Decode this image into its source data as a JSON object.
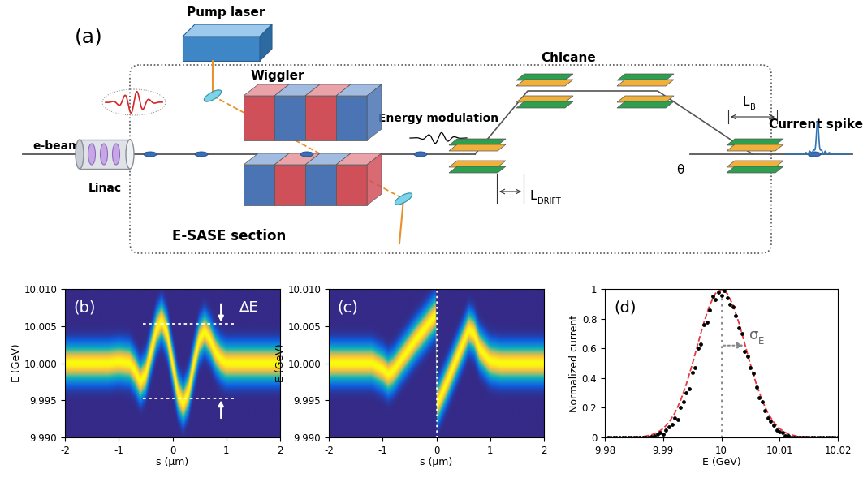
{
  "diagram": {
    "label": "(a)",
    "pump_laser": "Pump laser",
    "e_beam": "e-beam",
    "linac": "Linac",
    "wiggler": "Wiggler",
    "energy_modulation": "Energy modulation",
    "chicane": "Chicane",
    "current_spike": "Current spike",
    "section": "E-SASE section",
    "drift_length": {
      "symbol": "L",
      "subscript": "DRIFT"
    },
    "bend_length": {
      "symbol": "L",
      "subscript": "B"
    },
    "bend_angle": "θ"
  },
  "chart_data": [
    {
      "type": "density",
      "label": "(b)",
      "xlabel": "s (μm)",
      "ylabel": "E (GeV)",
      "xlim": [
        -2,
        2
      ],
      "xticks": [
        -2,
        -1,
        0,
        1,
        2
      ],
      "ylim": [
        9.99,
        10.01
      ],
      "yticks": [
        {
          "value": 9.99,
          "label": "9.990"
        },
        {
          "value": 9.995,
          "label": "9.995"
        },
        {
          "value": 10.0,
          "label": "10.000"
        },
        {
          "value": 10.005,
          "label": "10.005"
        },
        {
          "value": 10.01,
          "label": "10.010"
        }
      ],
      "x": [
        -2,
        -1.2,
        -1.0,
        -0.9,
        -0.8,
        -0.7,
        -0.6,
        -0.5,
        -0.4,
        -0.3,
        -0.2,
        -0.1,
        0,
        0.1,
        0.2,
        0.3,
        0.4,
        0.5,
        0.6,
        0.7,
        0.8,
        0.9,
        1.0,
        1.2,
        2
      ],
      "values": [
        10.0,
        10.0,
        10.0002,
        10.0001,
        10.0,
        9.999,
        9.9975,
        9.9985,
        10.0015,
        10.0045,
        10.0058,
        10.004,
        10.0,
        9.996,
        9.9945,
        9.9962,
        10.0,
        10.0032,
        10.0043,
        10.0032,
        10.0015,
        10.0005,
        10.0,
        10.0,
        10.0
      ],
      "energy_spread": 0.0012,
      "modulation": {
        "text": "ΔE",
        "upper": 10.0053,
        "lower": 9.9953
      }
    },
    {
      "type": "density",
      "label": "(c)",
      "xlabel": "s (μm)",
      "ylabel": "E (GeV)",
      "xlim": [
        -2,
        2
      ],
      "xticks": [
        -2,
        -1,
        0,
        1,
        2
      ],
      "ylim": [
        9.99,
        10.01
      ],
      "yticks": [
        {
          "value": 9.99,
          "label": "9.990"
        },
        {
          "value": 9.995,
          "label": "9.995"
        },
        {
          "value": 10.0,
          "label": "10.000"
        },
        {
          "value": 10.005,
          "label": "10.005"
        },
        {
          "value": 10.01,
          "label": "10.010"
        }
      ],
      "x": [
        -2,
        -1.2,
        -1.0,
        -0.9,
        -0.8,
        -0.6,
        -0.4,
        -0.2,
        -0.05,
        -0.01,
        0.01,
        0.05,
        0.2,
        0.4,
        0.6,
        0.7,
        0.8,
        1.0,
        1.2,
        2
      ],
      "values": [
        10.0,
        10.0,
        9.9992,
        9.9985,
        9.999,
        10.001,
        10.003,
        10.0048,
        10.0062,
        10.0065,
        9.9945,
        9.995,
        9.9975,
        10.001,
        10.0045,
        10.004,
        10.002,
        10.0003,
        10.0,
        10.0
      ],
      "energy_spread": 0.0012,
      "cut_position": 0
    },
    {
      "type": "scatter",
      "label": "(d)",
      "xlabel": "E (GeV)",
      "ylabel": "Normalized current",
      "xlim": [
        9.98,
        10.02
      ],
      "xticks": [
        9.98,
        9.99,
        10,
        10.01,
        10.02
      ],
      "ylim": [
        0,
        1
      ],
      "yticks": [
        0,
        0.2,
        0.4,
        0.6,
        0.8,
        1
      ],
      "series": [
        {
          "type": "scatter",
          "color": "#000000",
          "marker": "o",
          "x": [
            9.98,
            9.9805,
            9.981,
            9.9815,
            9.982,
            9.9825,
            9.983,
            9.9835,
            9.984,
            9.9845,
            9.985,
            9.9855,
            9.986,
            9.9865,
            9.987,
            9.9875,
            9.988,
            9.9885,
            9.989,
            9.9895,
            9.99,
            9.9905,
            9.991,
            9.9915,
            9.992,
            9.9925,
            9.993,
            9.9935,
            9.994,
            9.9945,
            9.995,
            9.9955,
            9.996,
            9.9965,
            9.997,
            9.9975,
            9.998,
            9.9985,
            9.999,
            9.9995,
            10.0,
            10.0005,
            10.001,
            10.0015,
            10.002,
            10.0025,
            10.003,
            10.0035,
            10.004,
            10.0045,
            10.005,
            10.0055,
            10.006,
            10.0065,
            10.007,
            10.0075,
            10.008,
            10.0085,
            10.009,
            10.0095,
            10.01,
            10.0105,
            10.011,
            10.0115,
            10.012,
            10.0125,
            10.013,
            10.0135,
            10.014,
            10.0145,
            10.015,
            10.0155,
            10.016,
            10.0165,
            10.017,
            10.0175,
            10.018,
            10.0185,
            10.019,
            10.0195,
            10.02
          ],
          "values": [
            0,
            0,
            0,
            0,
            0,
            0,
            0,
            0,
            0,
            0,
            0,
            0,
            0,
            0,
            0,
            0,
            0.007,
            0.012,
            0.02,
            0.03,
            0.02,
            0.05,
            0.07,
            0.09,
            0.13,
            0.12,
            0.2,
            0.24,
            0.3,
            0.33,
            0.44,
            0.47,
            0.6,
            0.63,
            0.76,
            0.78,
            0.86,
            0.95,
            0.93,
            0.98,
            0.96,
            0.99,
            0.94,
            0.9,
            0.88,
            0.82,
            0.74,
            0.7,
            0.58,
            0.55,
            0.47,
            0.43,
            0.34,
            0.27,
            0.24,
            0.18,
            0.13,
            0.11,
            0.08,
            0.05,
            0.04,
            0.03,
            0.01,
            0.01,
            0.0,
            0,
            0,
            0,
            0,
            0,
            0,
            0,
            0,
            0,
            0,
            0,
            0,
            0,
            0,
            0,
            0
          ]
        },
        {
          "type": "line",
          "color": "#e8383d",
          "line_style": "dashed",
          "x": [
            9.98,
            9.981,
            9.982,
            9.983,
            9.984,
            9.985,
            9.986,
            9.987,
            9.988,
            9.989,
            9.99,
            9.991,
            9.992,
            9.993,
            9.994,
            9.995,
            9.996,
            9.997,
            9.998,
            9.999,
            10.0,
            10.001,
            10.002,
            10.003,
            10.004,
            10.005,
            10.006,
            10.007,
            10.008,
            10.009,
            10.01,
            10.011,
            10.012,
            10.013,
            10.014,
            10.015,
            10.016,
            10.017,
            10.018,
            10.019,
            10.02
          ],
          "values": [
            0,
            0,
            0,
            0,
            0.001,
            0.002,
            0.004,
            0.008,
            0.017,
            0.032,
            0.059,
            0.101,
            0.163,
            0.249,
            0.36,
            0.492,
            0.635,
            0.775,
            0.893,
            0.972,
            1,
            0.972,
            0.893,
            0.775,
            0.635,
            0.492,
            0.36,
            0.249,
            0.163,
            0.101,
            0.059,
            0.032,
            0.017,
            0.008,
            0.004,
            0.002,
            0.001,
            0,
            0,
            0,
            0
          ]
        }
      ],
      "sigma": {
        "symbol": "σ",
        "subscript": "E",
        "center": 10.0,
        "width": 0.0042
      }
    }
  ]
}
